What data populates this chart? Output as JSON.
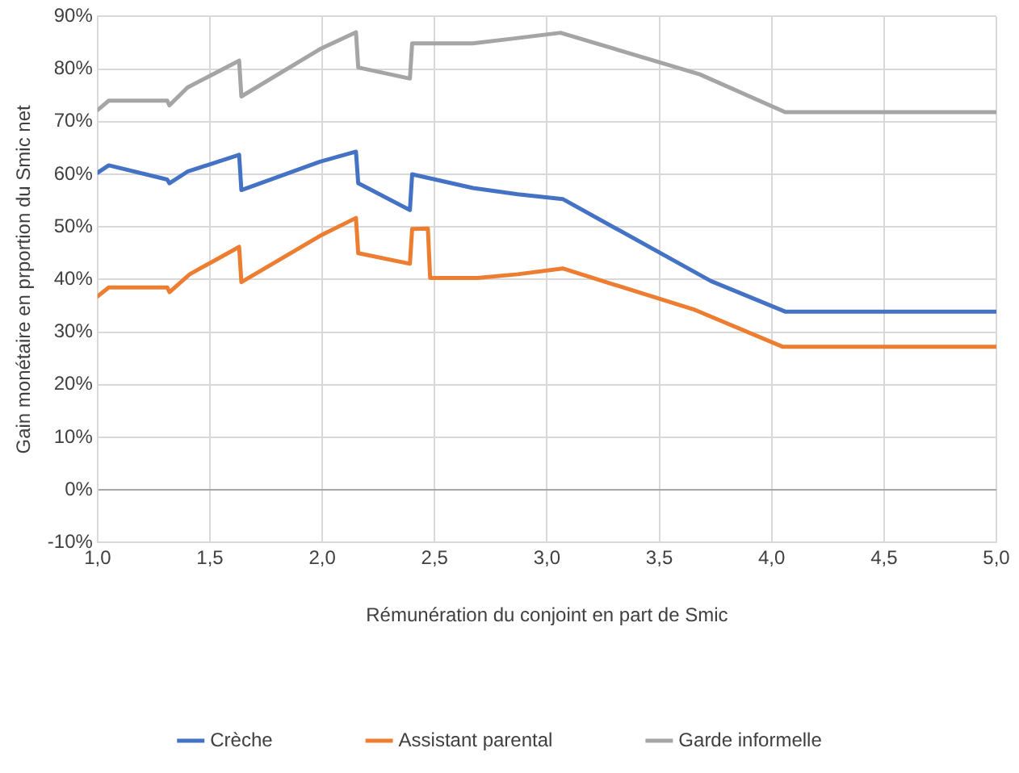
{
  "chart_data": {
    "type": "line",
    "xlabel": "Rémunération du conjoint en part de Smic",
    "ylabel": "Gain monétaire en prportion du Smic net",
    "xlim": [
      1,
      5
    ],
    "xticks": [
      {
        "value": 1,
        "label": "1,0"
      },
      {
        "value": 1.5,
        "label": "1,5"
      },
      {
        "value": 2,
        "label": "2,0"
      },
      {
        "value": 2.5,
        "label": "2,5"
      },
      {
        "value": 3,
        "label": "3,0"
      },
      {
        "value": 3.5,
        "label": "3,5"
      },
      {
        "value": 4,
        "label": "4,0"
      },
      {
        "value": 4.5,
        "label": "4,5"
      },
      {
        "value": 5,
        "label": "5,0"
      }
    ],
    "ylim": [
      -10,
      90
    ],
    "yticks": [
      {
        "value": -10,
        "label": "-10%"
      },
      {
        "value": 0,
        "label": "0%"
      },
      {
        "value": 10,
        "label": "10%"
      },
      {
        "value": 20,
        "label": "20%"
      },
      {
        "value": 30,
        "label": "30%"
      },
      {
        "value": 40,
        "label": "40%"
      },
      {
        "value": 50,
        "label": "50%"
      },
      {
        "value": 60,
        "label": "60%"
      },
      {
        "value": 70,
        "label": "70%"
      },
      {
        "value": 80,
        "label": "80%"
      },
      {
        "value": 90,
        "label": "90%"
      }
    ],
    "grid": true,
    "legend": "bottom",
    "marker": "none",
    "line_style": "solid",
    "series": [
      {
        "name": "Crèche",
        "color": "#4472c4",
        "x": [
          1.0,
          1.05,
          1.31,
          1.32,
          1.4,
          1.63,
          1.64,
          1.99,
          2.15,
          2.16,
          2.39,
          2.4,
          2.67,
          2.87,
          3.07,
          3.73,
          4.06,
          5.0
        ],
        "values": [
          60.3,
          61.7,
          59.0,
          58.3,
          60.5,
          63.7,
          57.0,
          62.4,
          64.3,
          58.3,
          53.2,
          60.0,
          57.4,
          56.2,
          55.3,
          39.7,
          33.9,
          33.9
        ]
      },
      {
        "name": "Assistant parental",
        "color": "#ed7d31",
        "x": [
          1.0,
          1.05,
          1.31,
          1.32,
          1.41,
          1.63,
          1.64,
          1.99,
          2.15,
          2.16,
          2.39,
          2.4,
          2.47,
          2.48,
          2.69,
          2.87,
          3.07,
          3.66,
          4.05,
          5.0
        ],
        "values": [
          36.8,
          38.5,
          38.5,
          37.6,
          41.0,
          46.2,
          39.5,
          48.3,
          51.7,
          45.0,
          43.0,
          49.6,
          49.7,
          40.3,
          40.3,
          41.0,
          42.1,
          34.2,
          27.2,
          27.2
        ]
      },
      {
        "name": "Garde informelle",
        "color": "#a5a5a5",
        "x": [
          1.0,
          1.05,
          1.31,
          1.32,
          1.4,
          1.63,
          1.64,
          1.99,
          2.15,
          2.16,
          2.39,
          2.4,
          2.67,
          2.87,
          3.06,
          3.68,
          4.06,
          5.0
        ],
        "values": [
          72.2,
          74.0,
          74.0,
          73.1,
          76.5,
          81.6,
          74.8,
          83.8,
          87.0,
          80.3,
          78.2,
          84.9,
          84.9,
          85.9,
          86.9,
          79.0,
          71.8,
          71.8
        ]
      }
    ]
  }
}
